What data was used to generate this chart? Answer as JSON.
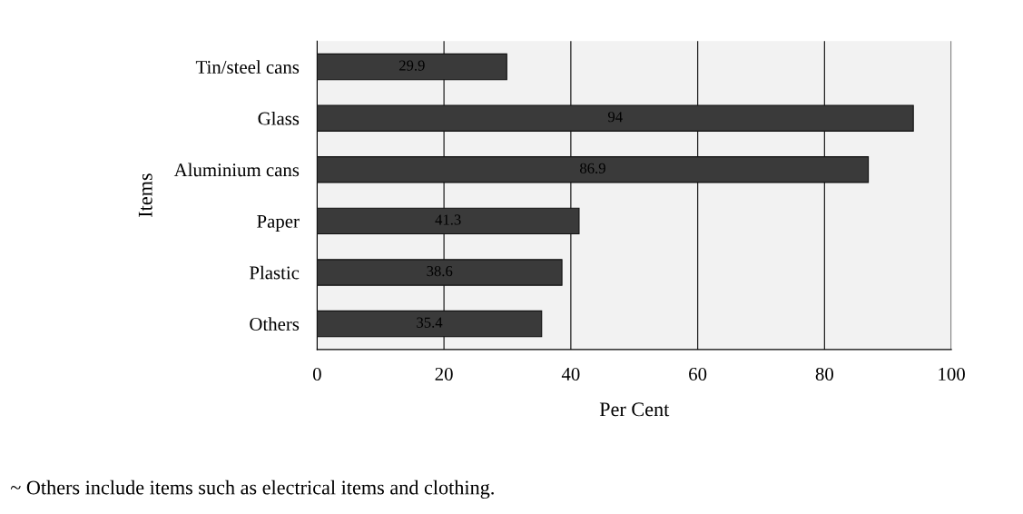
{
  "chart_data": {
    "type": "bar",
    "orientation": "horizontal",
    "categories": [
      "Tin/steel cans",
      "Glass",
      "Aluminium cans",
      "Paper",
      "Plastic",
      "Others"
    ],
    "values": [
      29.9,
      94,
      86.9,
      41.3,
      38.6,
      35.4
    ],
    "color": "#3a3a3a",
    "xlabel": "Per Cent",
    "ylabel": "Items",
    "xlim": [
      0,
      100
    ],
    "xticks": [
      0,
      20,
      40,
      60,
      80,
      100
    ],
    "grid": "x",
    "data_labels": true,
    "annotations": [
      "~ Others include items such as electrical items and clothing."
    ]
  }
}
